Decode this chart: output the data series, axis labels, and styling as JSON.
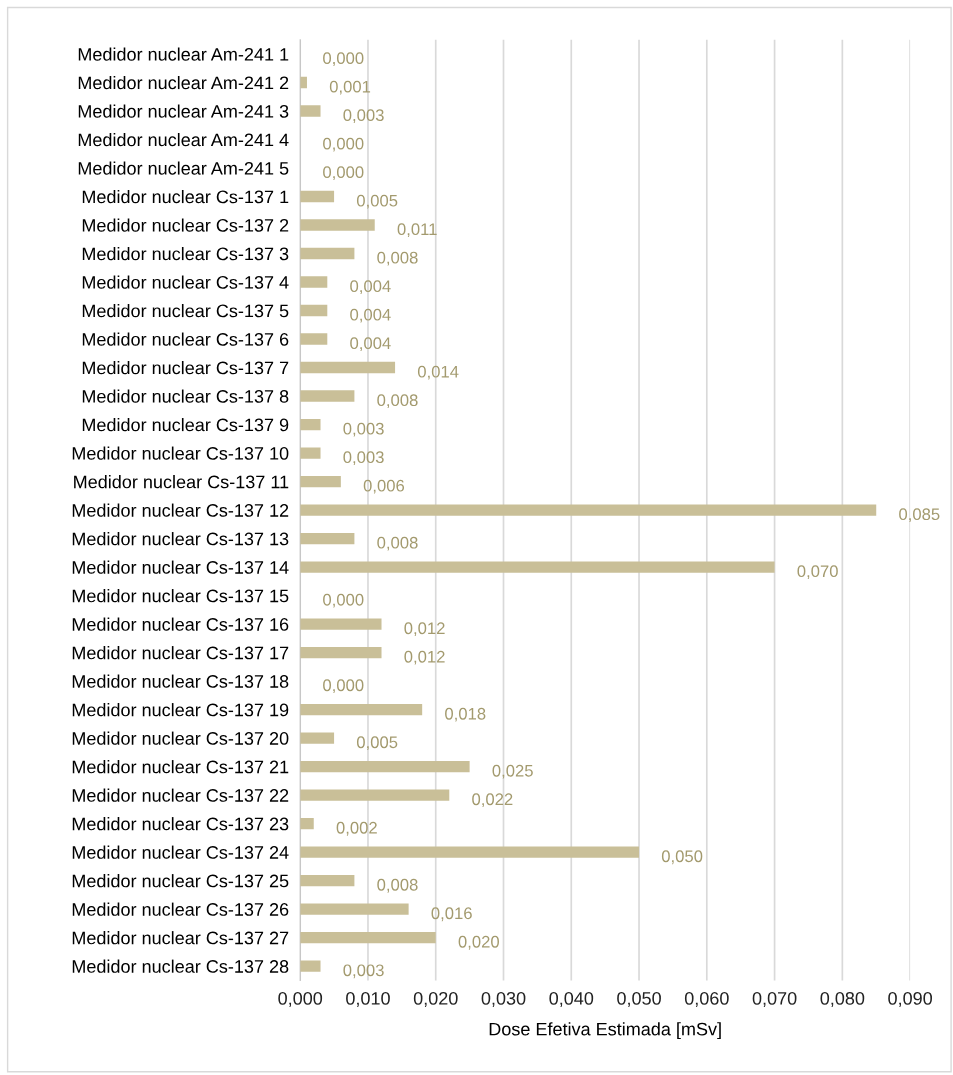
{
  "chart_data": {
    "type": "bar",
    "orientation": "horizontal",
    "xlabel": "Dose Efetiva Estimada [mSv]",
    "categories": [
      "Medidor nuclear Am-241 1",
      "Medidor nuclear Am-241 2",
      "Medidor nuclear Am-241 3",
      "Medidor nuclear Am-241 4",
      "Medidor nuclear Am-241 5",
      "Medidor nuclear Cs-137 1",
      "Medidor nuclear Cs-137 2",
      "Medidor nuclear Cs-137 3",
      "Medidor nuclear Cs-137 4",
      "Medidor nuclear Cs-137 5",
      "Medidor nuclear Cs-137 6",
      "Medidor nuclear Cs-137 7",
      "Medidor nuclear Cs-137 8",
      "Medidor nuclear Cs-137 9",
      "Medidor nuclear Cs-137 10",
      "Medidor nuclear Cs-137 11",
      "Medidor nuclear Cs-137 12",
      "Medidor nuclear Cs-137 13",
      "Medidor nuclear Cs-137 14",
      "Medidor nuclear Cs-137 15",
      "Medidor nuclear Cs-137 16",
      "Medidor nuclear Cs-137 17",
      "Medidor nuclear Cs-137 18",
      "Medidor nuclear Cs-137 19",
      "Medidor nuclear Cs-137 20",
      "Medidor nuclear Cs-137 21",
      "Medidor nuclear Cs-137 22",
      "Medidor nuclear Cs-137 23",
      "Medidor nuclear Cs-137 24",
      "Medidor nuclear Cs-137 25",
      "Medidor nuclear Cs-137 26",
      "Medidor nuclear Cs-137 27",
      "Medidor nuclear Cs-137 28"
    ],
    "values": [
      0,
      0.001,
      0.003,
      0,
      0,
      0.005,
      0.011,
      0.008,
      0.004,
      0.004,
      0.004,
      0.014,
      0.008,
      0.003,
      0.003,
      0.006,
      0.085,
      0.008,
      0.07,
      0,
      0.012,
      0.012,
      0,
      0.018,
      0.005,
      0.025,
      0.022,
      0.002,
      0.05,
      0.008,
      0.016,
      0.02,
      0.003
    ],
    "value_labels": [
      "0,000",
      "0,001",
      "0,003",
      "0,000",
      "0,000",
      "0,005",
      "0,011",
      "0,008",
      "0,004",
      "0,004",
      "0,004",
      "0,014",
      "0,008",
      "0,003",
      "0,003",
      "0,006",
      "0,085",
      "0,008",
      "0,070",
      "0,000",
      "0,012",
      "0,012",
      "0,000",
      "0,018",
      "0,005",
      "0,025",
      "0,022",
      "0,002",
      "0,050",
      "0,008",
      "0,016",
      "0,020",
      "0,003"
    ],
    "color": "#c9bf98",
    "xlim": [
      0,
      0.09
    ],
    "xticks": [
      {
        "value": 0,
        "label": "0,000"
      },
      {
        "value": 0.01,
        "label": "0,010"
      },
      {
        "value": 0.02,
        "label": "0,020"
      },
      {
        "value": 0.03,
        "label": "0,030"
      },
      {
        "value": 0.04,
        "label": "0,040"
      },
      {
        "value": 0.05,
        "label": "0,050"
      },
      {
        "value": 0.06,
        "label": "0,060"
      },
      {
        "value": 0.07,
        "label": "0,070"
      },
      {
        "value": 0.08,
        "label": "0,080"
      },
      {
        "value": 0.09,
        "label": "0,090"
      }
    ],
    "grid": "x"
  }
}
